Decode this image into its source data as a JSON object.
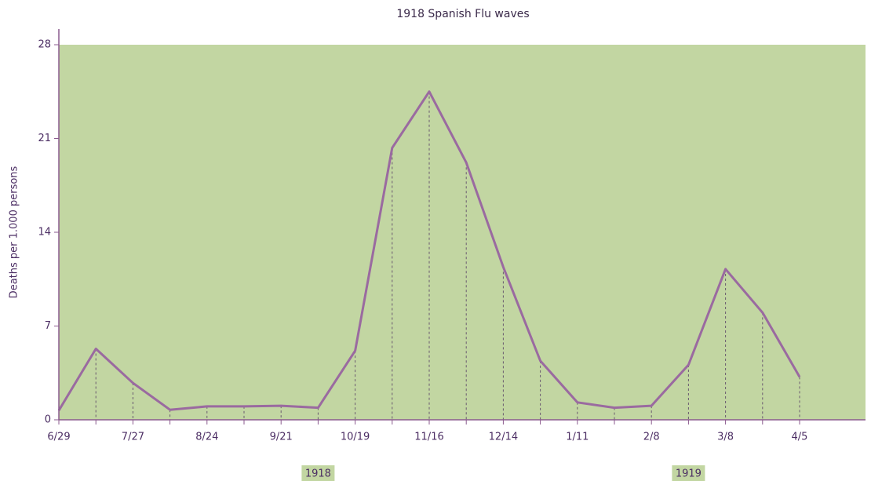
{
  "chart_data": {
    "type": "line",
    "title": "1918 Spanish Flu waves",
    "y_label": "Deaths per 1.000 persons",
    "categories": [
      "6/29",
      null,
      "7/27",
      null,
      "8/24",
      null,
      "9/21",
      null,
      "10/19",
      null,
      "11/16",
      null,
      "12/14",
      null,
      "1/11",
      null,
      "2/8",
      null,
      "3/8",
      null,
      "4/5"
    ],
    "series": [
      {
        "name": "Deaths",
        "color": "#9a6aa0",
        "values": [
          0.7,
          5.3,
          2.75,
          0.75,
          1.0,
          1.0,
          1.05,
          0.9,
          5.15,
          20.3,
          24.5,
          19.2,
          11.4,
          4.4,
          1.3,
          0.9,
          1.05,
          4.1,
          11.25,
          8.0,
          3.2
        ]
      }
    ],
    "ylim": [
      0,
      28
    ],
    "yticks": [
      0,
      7,
      14,
      21,
      28
    ],
    "background": "#c2d6a2",
    "annotations": [
      "1918",
      "1919"
    ]
  }
}
